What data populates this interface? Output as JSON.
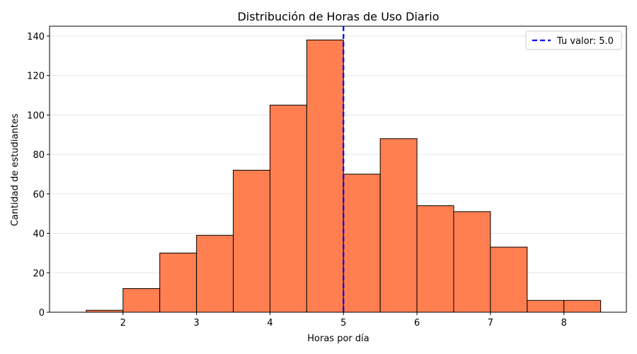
{
  "chart_data": {
    "type": "bar",
    "title": "Distribución de Horas de Uso Diario",
    "xlabel": "Horas por día",
    "ylabel": "Cantidad de estudiantes",
    "xlim": [
      1.0,
      8.85
    ],
    "ylim": [
      0,
      145
    ],
    "xticks": [
      2,
      3,
      4,
      5,
      6,
      7,
      8
    ],
    "yticks": [
      0,
      20,
      40,
      60,
      80,
      100,
      120,
      140
    ],
    "bins": [
      {
        "start": 1.5,
        "end": 2.0,
        "count": 1
      },
      {
        "start": 2.0,
        "end": 2.5,
        "count": 12
      },
      {
        "start": 2.5,
        "end": 3.0,
        "count": 30
      },
      {
        "start": 3.0,
        "end": 3.5,
        "count": 39
      },
      {
        "start": 3.5,
        "end": 4.0,
        "count": 72
      },
      {
        "start": 4.0,
        "end": 4.5,
        "count": 105
      },
      {
        "start": 4.5,
        "end": 5.0,
        "count": 138
      },
      {
        "start": 5.0,
        "end": 5.5,
        "count": 70
      },
      {
        "start": 5.5,
        "end": 6.0,
        "count": 88
      },
      {
        "start": 6.0,
        "end": 6.5,
        "count": 54
      },
      {
        "start": 6.5,
        "end": 7.0,
        "count": 51
      },
      {
        "start": 7.0,
        "end": 7.5,
        "count": 33
      },
      {
        "start": 7.5,
        "end": 8.0,
        "count": 6
      },
      {
        "start": 8.0,
        "end": 8.5,
        "count": 6
      }
    ],
    "reference_line": {
      "x": 5.0,
      "label": "Tu valor: 5.0",
      "color": "#0000ff",
      "style": "dashed"
    },
    "bar_color": "#ff7f50",
    "edge_color": "#000000",
    "grid": "y-only",
    "legend_position": "top-right"
  }
}
